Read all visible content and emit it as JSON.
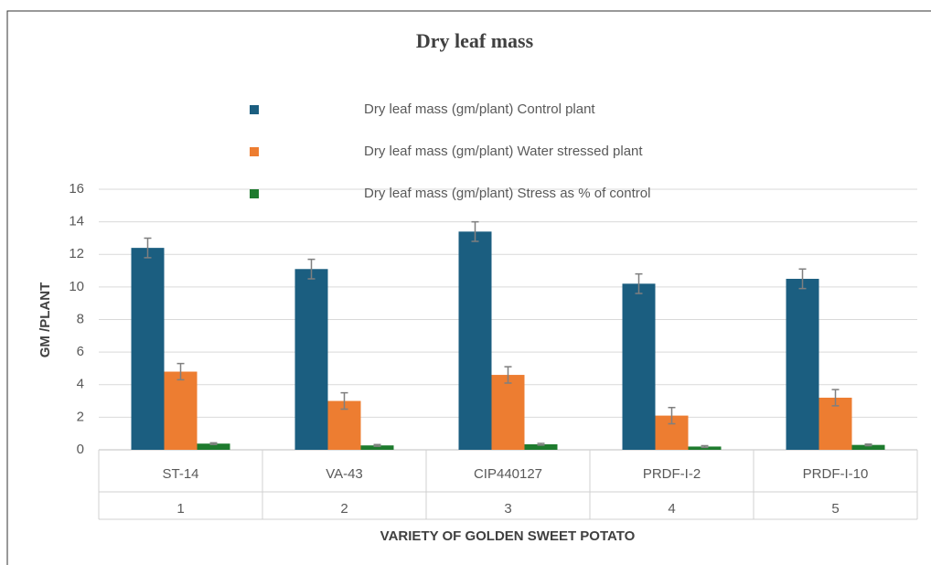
{
  "chart_data": {
    "type": "bar",
    "title": "Dry leaf mass",
    "categories": [
      "ST-14",
      "VA-43",
      "CIP440127",
      "PRDF-I-2",
      "PRDF-I-10"
    ],
    "category_groups": [
      "1",
      "2",
      "3",
      "4",
      "5"
    ],
    "series": [
      {
        "name": "Dry leaf mass (gm/plant) Control plant",
        "color": "#1b5e80",
        "values": [
          12.4,
          11.1,
          13.4,
          10.2,
          10.5
        ],
        "errors": [
          0.6,
          0.6,
          0.6,
          0.6,
          0.6
        ]
      },
      {
        "name": "Dry leaf mass (gm/plant) Water stressed plant",
        "color": "#ed7d31",
        "values": [
          4.8,
          3.0,
          4.6,
          2.1,
          3.2
        ],
        "errors": [
          0.5,
          0.5,
          0.5,
          0.5,
          0.5
        ]
      },
      {
        "name": "Dry leaf mass (gm/plant) Stress as % of control",
        "color": "#1e7b2e",
        "values": [
          0.38,
          0.27,
          0.34,
          0.2,
          0.3
        ],
        "errors": [
          0.05,
          0.05,
          0.05,
          0.05,
          0.05
        ]
      }
    ],
    "ylim": [
      0,
      16
    ],
    "yticks": [
      0,
      2,
      4,
      6,
      8,
      10,
      12,
      14,
      16
    ],
    "grid": true,
    "ylabel": "GM /PLANT",
    "xlabel": "VARIETY OF GOLDEN SWEET POTATO",
    "legend": "top"
  }
}
